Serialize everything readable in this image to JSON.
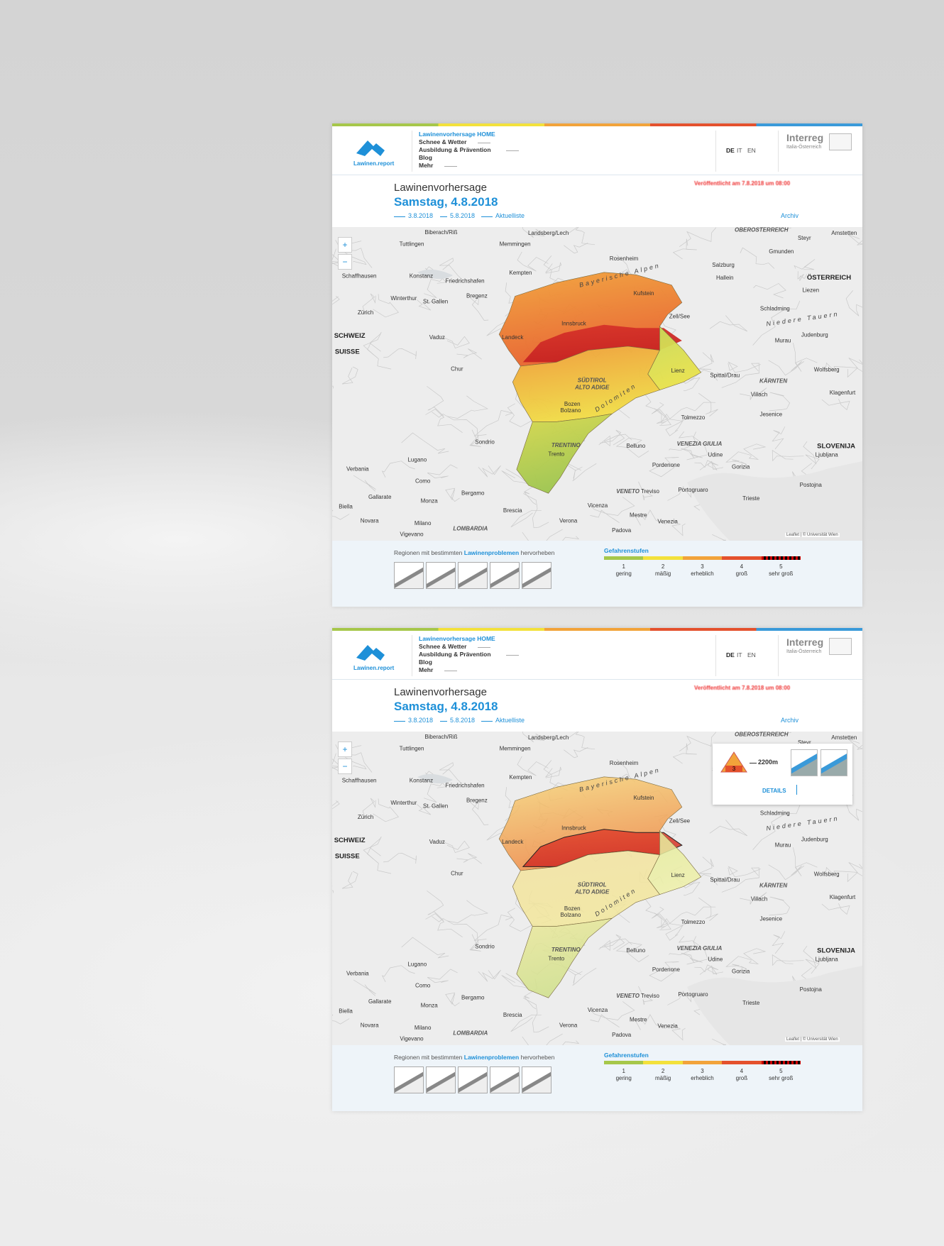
{
  "screens": [
    {
      "logo": "Lawinen.report",
      "nav": [
        "Lawinenvorhersage HOME",
        "Schnee & Wetter",
        "Ausbildung & Prävention",
        "Blog",
        "Mehr"
      ],
      "languages": [
        "DE",
        "IT",
        "EN"
      ],
      "sponsor": {
        "name": "Interreg",
        "region": "Italia-Österreich"
      },
      "title": "Lawinenvorhersage",
      "date": "Samstag, 4.8.2018",
      "published": "Veröffentlicht am 7.8.2018 um 08:00",
      "previous": "3.8.2018",
      "next": "5.8.2018",
      "latest": "Aktuelliste",
      "archive": "Archiv",
      "zoom": [
        "+",
        "−"
      ],
      "attribution": "Leaflet | © Universität Wien",
      "problems": [
        "Regionen mit bestimmten",
        "Lawinenproblemen",
        "hervorheben"
      ],
      "legend": {
        "title": "Gefahrenstufen",
        "levels": [
          {
            "level": 1,
            "name": "gering"
          },
          {
            "level": 2,
            "name": "mäßig"
          },
          {
            "level": 3,
            "name": "erheblich"
          },
          {
            "level": 4,
            "name": "groß"
          },
          {
            "level": 5,
            "name": "sehr groß"
          }
        ]
      }
    },
    {
      "logo": "Lawinen.report",
      "nav": [
        "Lawinenvorhersage HOME",
        "Schnee & Wetter",
        "Ausbildung & Prävention",
        "Blog",
        "Mehr"
      ],
      "languages": [
        "DE",
        "IT",
        "EN"
      ],
      "sponsor": {
        "name": "Interreg",
        "region": "Italia-Österreich"
      },
      "title": "Lawinenvorhersage",
      "date": "Samstag, 4.8.2018",
      "published": "Veröffentlicht am 7.8.2018 um 08:00",
      "previous": "3.8.2018",
      "next": "5.8.2018",
      "latest": "Aktuelliste",
      "archive": "Archiv",
      "zoom": [
        "+",
        "−"
      ],
      "attribution": "Leaflet | © Universität Wien",
      "problems": [
        "Regionen mit bestimmten",
        "Lawinenproblemen",
        "hervorheben"
      ],
      "legend": {
        "title": "Gefahrenstufen",
        "levels": [
          {
            "level": 1,
            "name": "gering"
          },
          {
            "level": 2,
            "name": "mäßig"
          },
          {
            "level": 3,
            "name": "erheblich"
          },
          {
            "level": 4,
            "name": "groß"
          },
          {
            "level": 5,
            "name": "sehr groß"
          }
        ]
      },
      "popup": {
        "level": 3,
        "elevation": "2200m",
        "link": "DETAILS"
      }
    }
  ],
  "map_labels": [
    "Biberach/Riß",
    "Memmingen",
    "Landsberg/Lech",
    "Tuttlingen",
    "Rosenheim",
    "Kempten",
    "Salzburg",
    "ÖSTERREICH",
    "Innsbruck",
    "Landeck",
    "Kufstein",
    "Lienz",
    "SÜDTIROL",
    "ALTO ADIGE",
    "Bozen",
    "Bolzano",
    "TRENTINO",
    "Trento",
    "SLOVENIJA",
    "Ljubljana",
    "Villach",
    "Klagenfurt",
    "Udine",
    "Treviso",
    "Venezia",
    "Padova",
    "Verona",
    "Bergamo",
    "Brescia",
    "Milano",
    "Como",
    "Lugano",
    "SCHWEIZ",
    "SUISSE",
    "Zürich",
    "Chur",
    "Vaduz",
    "LOMBARDIA",
    "VENETO",
    "Bayerische Alpen",
    "Dolomiten",
    "Niedere Tauern",
    "Gmunden",
    "Steyr",
    "Amstetten",
    "Hallein",
    "Liezen",
    "Zell/See",
    "Spittal/Drau",
    "Belluno",
    "Sondrio",
    "Bregenz",
    "St. Gallen",
    "Friedrichshafen",
    "Konstanz",
    "Schaffhausen",
    "Winterthur",
    "KÄRNTEN",
    "VENEZIA GIULIA",
    "Gorizia",
    "Trieste",
    "Pordenone",
    "Vicenza",
    "Mestre",
    "Novara",
    "Biella",
    "Gallarate",
    "Monza",
    "Vigevano",
    "OBERÖSTERREICH",
    "Wolfsberg",
    "Judenburg",
    "Murau",
    "Schladming",
    "Tolmezzo",
    "Jesenice",
    "Postojna",
    "Portogruaro",
    "Verbania"
  ]
}
